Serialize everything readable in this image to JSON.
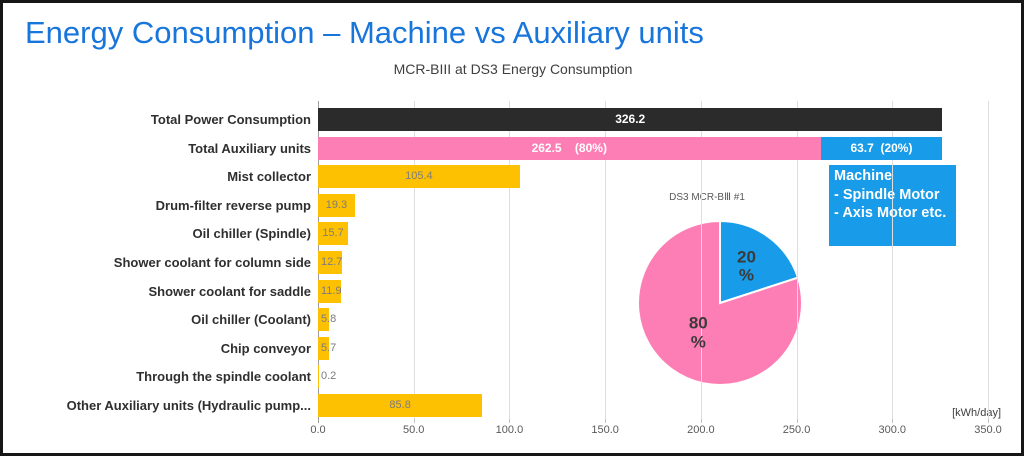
{
  "title": "Energy Consumption – Machine vs Auxiliary units",
  "subtitle": "MCR-BIII at DS3 Energy Consumption",
  "colors": {
    "title_blue": "#1775db",
    "black_bar": "#2b2b2b",
    "pink": "#fd7eb4",
    "blue": "#189be8",
    "orange": "#fec101",
    "grid": "#dedede",
    "axis": "#9e9e9e",
    "category_text": "#2f2f2f",
    "value_gray": "#7c7c7c",
    "tick_text": "#595959",
    "pie_label_text": "#3a3a3a"
  },
  "chart_data": {
    "type": "bar",
    "orientation": "horizontal",
    "title": "MCR-BIII at DS3 Energy Consumption",
    "unit_label": "[kWh/day]",
    "xlim": [
      0,
      350
    ],
    "grid": true,
    "x_ticks": [
      {
        "value": 0,
        "label": "0.0"
      },
      {
        "value": 50,
        "label": "50.0"
      },
      {
        "value": 100,
        "label": "100.0"
      },
      {
        "value": 150,
        "label": "150.0"
      },
      {
        "value": 200,
        "label": "200.0"
      },
      {
        "value": 250,
        "label": "250.0"
      },
      {
        "value": 300,
        "label": "300.0"
      },
      {
        "value": 350,
        "label": "350.0"
      }
    ],
    "rows": [
      {
        "category": "Total Power Consumption",
        "segments": [
          {
            "name": "total-power",
            "value": 326.2,
            "label": "326.2",
            "color_key": "black_bar",
            "text": "white"
          }
        ]
      },
      {
        "category": "Total Auxiliary units",
        "segments": [
          {
            "name": "auxiliary-units",
            "value": 262.5,
            "label": "262.5    (80%)",
            "color_key": "pink",
            "text": "white"
          },
          {
            "name": "machine-units",
            "value": 63.7,
            "label": "63.7  (20%)",
            "color_key": "blue",
            "text": "white"
          }
        ]
      },
      {
        "category": "Mist collector",
        "segments": [
          {
            "name": "mist-collector",
            "value": 105.4,
            "label": "105.4",
            "color_key": "orange",
            "text": "gray"
          }
        ]
      },
      {
        "category": "Drum-filter reverse pump",
        "segments": [
          {
            "name": "drum-filter-reverse-pump",
            "value": 19.3,
            "label": "19.3",
            "color_key": "orange",
            "text": "gray"
          }
        ]
      },
      {
        "category": "Oil chiller (Spindle)",
        "segments": [
          {
            "name": "oil-chiller-spindle",
            "value": 15.7,
            "label": "15.7",
            "color_key": "orange",
            "text": "gray"
          }
        ]
      },
      {
        "category": "Shower coolant for column side",
        "segments": [
          {
            "name": "shower-coolant-column",
            "value": 12.7,
            "label": "12.7",
            "color_key": "orange",
            "text": "gray"
          }
        ]
      },
      {
        "category": "Shower coolant for saddle",
        "segments": [
          {
            "name": "shower-coolant-saddle",
            "value": 11.9,
            "label": "11.9",
            "color_key": "orange",
            "text": "gray"
          }
        ]
      },
      {
        "category": "Oil chiller (Coolant)",
        "segments": [
          {
            "name": "oil-chiller-coolant",
            "value": 5.8,
            "label": "5.8",
            "color_key": "orange",
            "text": "gray"
          }
        ]
      },
      {
        "category": "Chip conveyor",
        "segments": [
          {
            "name": "chip-conveyor",
            "value": 5.7,
            "label": "5.7",
            "color_key": "orange",
            "text": "gray"
          }
        ]
      },
      {
        "category": "Through the spindle coolant",
        "segments": [
          {
            "name": "through-spindle-coolant",
            "value": 0.2,
            "label": "0.2",
            "color_key": "orange",
            "text": "gray"
          }
        ]
      },
      {
        "category": "Other Auxiliary units (Hydraulic pump...",
        "segments": [
          {
            "name": "other-auxiliary-units",
            "value": 85.8,
            "label": "85.8",
            "color_key": "orange",
            "text": "gray"
          }
        ]
      }
    ],
    "pie": {
      "title": "DS3 MCR-BⅢ #1",
      "slices": [
        {
          "name": "Machine",
          "pct": 20,
          "label_lines": [
            "20",
            "%"
          ],
          "color_key": "blue",
          "label_radius_factor": 0.55
        },
        {
          "name": "Auxiliary units",
          "pct": 80,
          "label_lines": [
            "80",
            "%"
          ],
          "color_key": "pink",
          "label_radius_factor": 0.45
        }
      ]
    },
    "machine_box": {
      "lines": [
        "Machine",
        "- Spindle Motor",
        "- Axis Motor etc."
      ],
      "color_key": "blue"
    }
  }
}
